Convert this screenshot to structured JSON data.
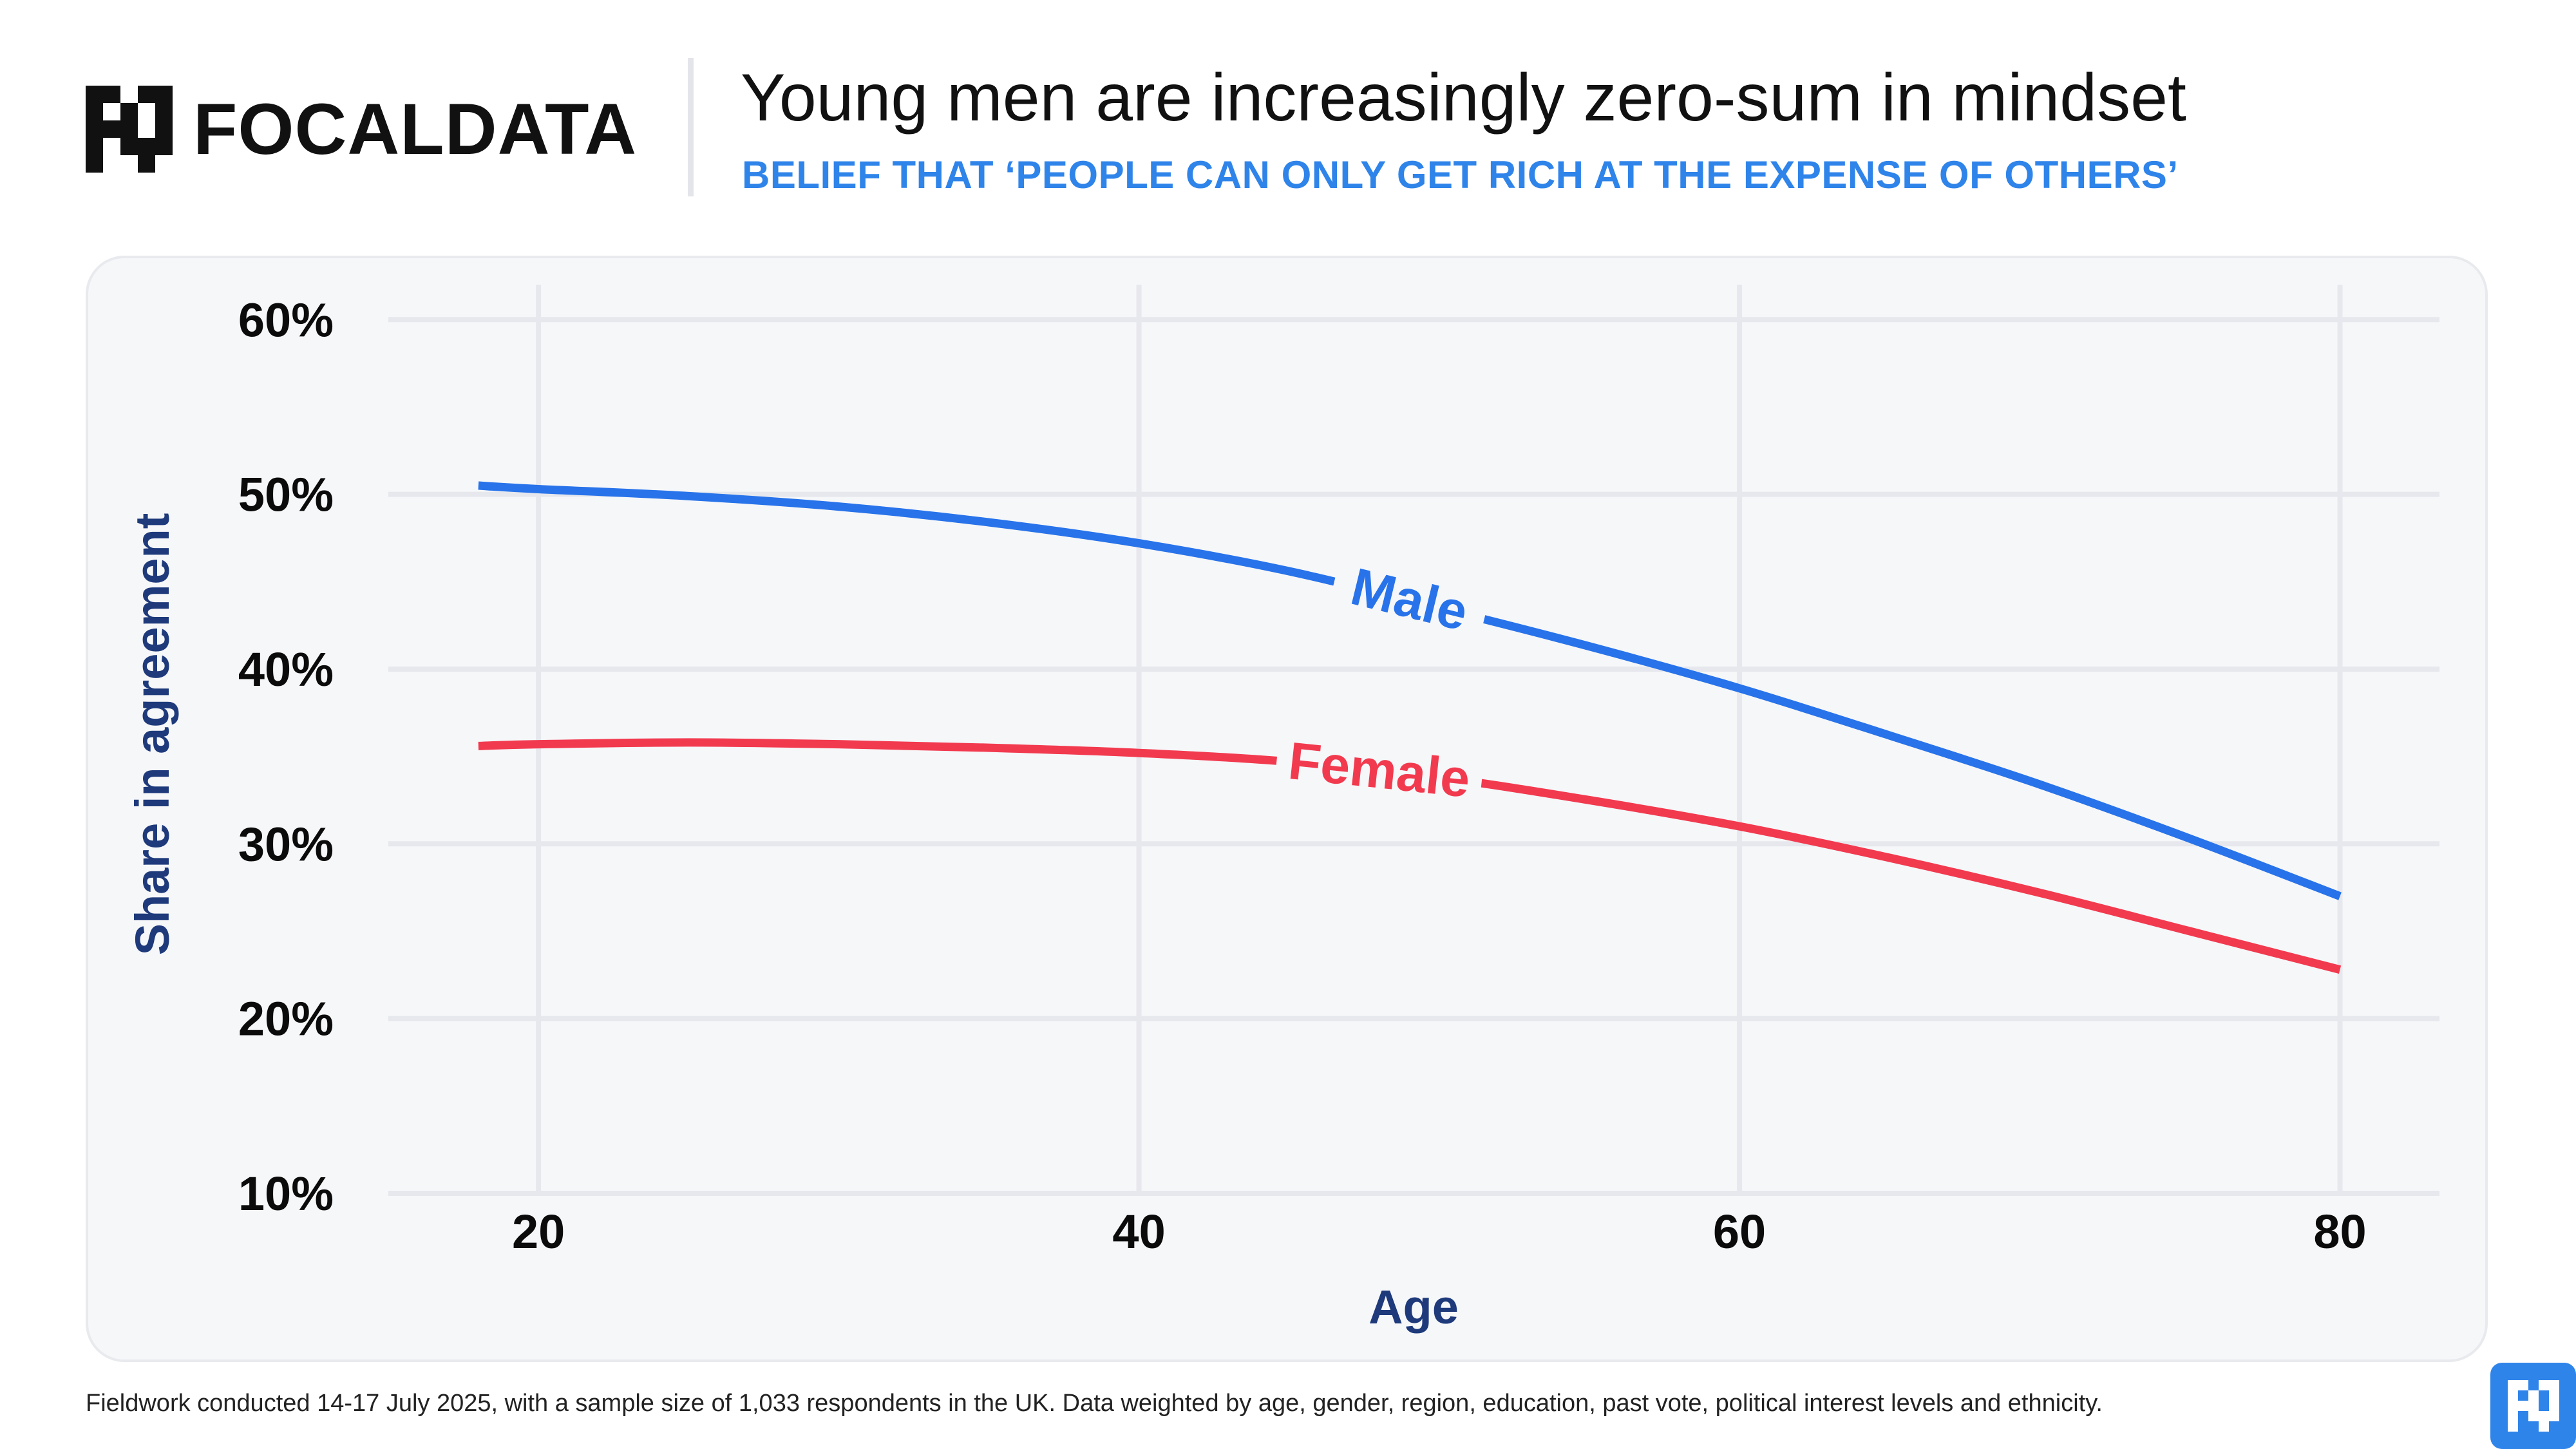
{
  "brand": {
    "name": "FOCALDATA"
  },
  "header": {
    "title": "Young men are increasingly zero-sum in mindset",
    "subtitle": "BELIEF THAT ‘PEOPLE CAN ONLY GET RICH AT THE EXPENSE OF OTHERS’"
  },
  "footnote": "Fieldwork conducted 14-17 July 2025, with a sample size of 1,033 respondents in the UK. Data weighted by age, gender, region, education, past vote, political interest levels and ethnicity.",
  "colors": {
    "male": "#2873ea",
    "female": "#f23a4f",
    "axis_label": "#1e3a7b",
    "subtitle": "#2f84ea"
  },
  "chart_data": {
    "type": "line",
    "xlabel": "Age",
    "ylabel": "Share in agreement",
    "xlim": [
      15,
      84
    ],
    "ylim": [
      10,
      62
    ],
    "x_ticks": [
      20,
      40,
      60,
      80
    ],
    "x_tick_labels": [
      "20",
      "40",
      "60",
      "80"
    ],
    "y_ticks": [
      10,
      20,
      30,
      40,
      50,
      60
    ],
    "y_tick_labels": [
      "10%",
      "20%",
      "30%",
      "40%",
      "50%",
      "60%"
    ],
    "grid": true,
    "series": [
      {
        "name": "Male",
        "color": "#2873ea",
        "label_at_x": 49,
        "x": [
          18,
          20,
          25,
          30,
          35,
          40,
          45,
          50,
          55,
          60,
          65,
          70,
          75,
          80
        ],
        "y": [
          50.5,
          50.3,
          49.9,
          49.3,
          48.4,
          47.2,
          45.6,
          43.5,
          41.3,
          38.9,
          36.2,
          33.4,
          30.3,
          27.0
        ]
      },
      {
        "name": "Female",
        "color": "#f23a4f",
        "label_at_x": 48,
        "x": [
          18,
          20,
          25,
          30,
          35,
          40,
          45,
          50,
          55,
          60,
          65,
          70,
          75,
          80
        ],
        "y": [
          35.6,
          35.7,
          35.8,
          35.7,
          35.5,
          35.2,
          34.7,
          33.8,
          32.5,
          31.0,
          29.2,
          27.2,
          25.0,
          22.8
        ]
      }
    ]
  }
}
